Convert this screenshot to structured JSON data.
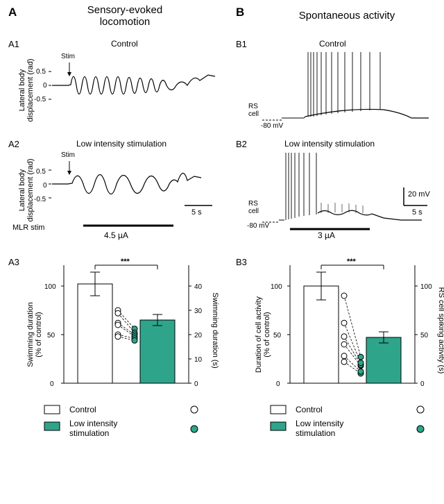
{
  "columns": {
    "left_title": "Sensory-evoked\nlocomotion",
    "right_title": "Spontaneous activity"
  },
  "labels": {
    "A": "A",
    "B": "B",
    "A1": "A1",
    "A2": "A2",
    "A3": "A3",
    "B1": "B1",
    "B2": "B2",
    "B3": "B3"
  },
  "conditions": {
    "control": "Control",
    "low_intensity": "Low intensity stimulation"
  },
  "A1": {
    "ylabel": "Lateral body\ndisplacement (rad)",
    "yticks": [
      "0.5",
      "0",
      "-0.5"
    ],
    "stim_label": "Stim"
  },
  "A2": {
    "ylabel": "Lateral body\ndisplacement (rad)",
    "yticks": [
      "0.5",
      "0",
      "-0.5"
    ],
    "stim_label": "Stim",
    "mlr_label": "MLR stim",
    "mlr_value": "4.5 µA",
    "scale_time": "5 s"
  },
  "B1": {
    "rs_label": "RS\ncell",
    "mv_label": "-80 mV"
  },
  "B2": {
    "rs_label": "RS\ncell",
    "mv_label": "-80 mV",
    "scale_v": "20 mV",
    "scale_t": "5 s",
    "stim_value": "3 µA"
  },
  "A3": {
    "ylabel_left": "Swimming duration\n(% of control)",
    "ylabel_right": "Swimming duration (s)",
    "xticks": [
      "Control",
      "Low intensity\nstimulation"
    ],
    "left_ticks": [
      "0",
      "50",
      "100"
    ],
    "right_ticks": [
      "0",
      "10",
      "20",
      "30",
      "40"
    ],
    "bars": {
      "control_mean": 102,
      "control_sd": 12,
      "low_mean": 65,
      "low_sd": 6
    },
    "bar_colors": {
      "control": "#ffffff",
      "low": "#2ea58b"
    },
    "points_control": [
      44,
      47,
      54,
      52,
      77,
      75
    ],
    "points_low": [
      44,
      48,
      47,
      48,
      50,
      56
    ],
    "sig": "***"
  },
  "B3": {
    "ylabel_left": "Duration of cell activity\n(% of control)",
    "ylabel_right": "RS cell spiking activity (s)",
    "xticks": [
      "Control",
      "Low intensity\nstimulation"
    ],
    "left_ticks": [
      "0",
      "50",
      "100"
    ],
    "right_ticks": [
      "0",
      "50",
      "100"
    ],
    "bars": {
      "control_mean": 100,
      "control_sd": 14,
      "low_mean": 47,
      "low_sd": 6
    },
    "bar_colors": {
      "control": "#ffffff",
      "low": "#2ea58b"
    },
    "points_control": [
      22,
      28,
      40,
      48,
      62,
      90
    ],
    "points_low": [
      10,
      12,
      18,
      19,
      21,
      27
    ],
    "sig": "***"
  },
  "legend": {
    "control": "Control",
    "low": "Low intensity\nstimulation"
  },
  "colors": {
    "trace": "#000000",
    "accent": "#2ea58b",
    "grid": "#000000"
  }
}
